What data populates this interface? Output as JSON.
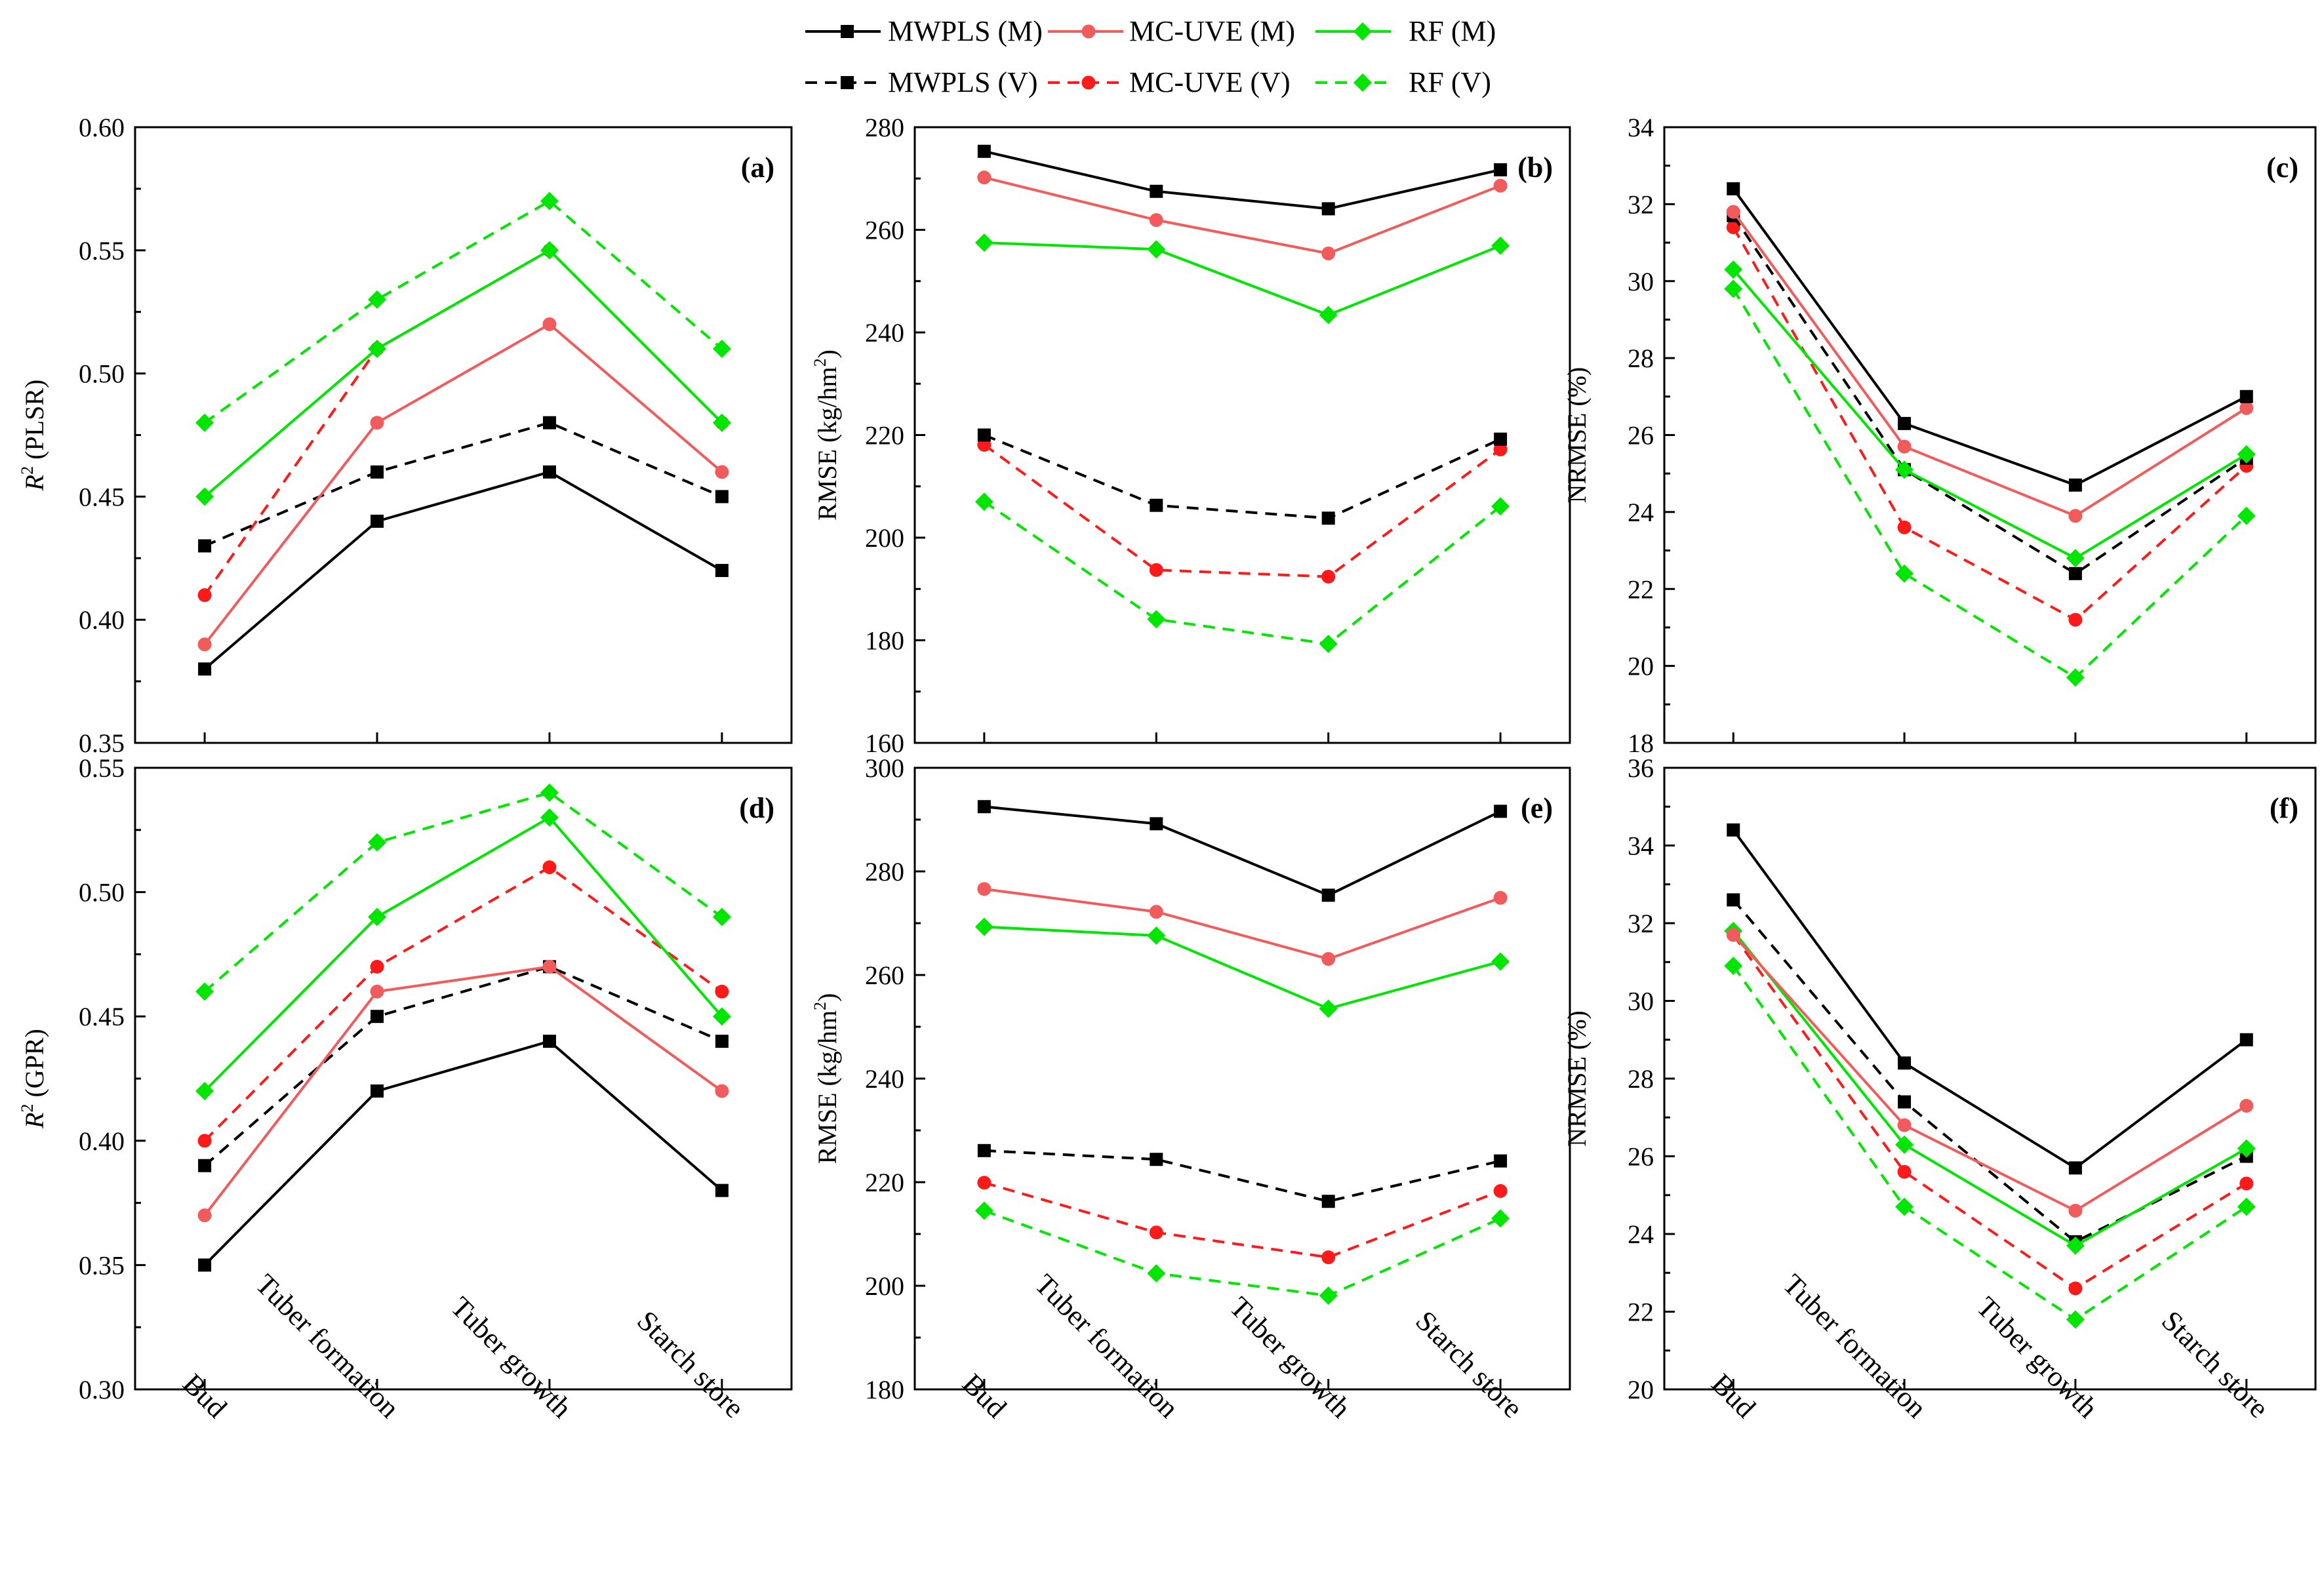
{
  "colors": {
    "mwpls": "#000000",
    "mcuve_m": "#f25b5b",
    "mcuve_v": "#ff1a1a",
    "rf": "#00e600"
  },
  "legend": [
    {
      "label": "MWPLS (M)",
      "color": "#000000",
      "marker": "square",
      "dashed": false
    },
    {
      "label": "MC-UVE (M)",
      "color": "#f25b5b",
      "marker": "circle",
      "dashed": false
    },
    {
      "label": "RF (M)",
      "color": "#00e600",
      "marker": "diamond",
      "dashed": false
    },
    {
      "label": "MWPLS (V)",
      "color": "#000000",
      "marker": "square",
      "dashed": true
    },
    {
      "label": "MC-UVE (V)",
      "color": "#ff1a1a",
      "marker": "circle",
      "dashed": true
    },
    {
      "label": "RF (V)",
      "color": "#00e600",
      "marker": "diamond",
      "dashed": true
    }
  ],
  "chart_data": [
    {
      "type": "line",
      "panel": "(a)",
      "ylabel_main": "R",
      "ylabel_sup": "2",
      "ylabel_rest": " (PLSR)",
      "categories": [
        "Bud",
        "Tuber formation",
        "Tuber growth",
        "Starch store"
      ],
      "ylim": [
        0.35,
        0.6
      ],
      "yticks": [
        0.35,
        0.4,
        0.45,
        0.5,
        0.55,
        0.6
      ],
      "yfmt": "0.00",
      "series": [
        {
          "name": "MWPLS (M)",
          "values": [
            0.38,
            0.44,
            0.46,
            0.42
          ]
        },
        {
          "name": "MC-UVE (M)",
          "values": [
            0.39,
            0.48,
            0.52,
            0.46
          ]
        },
        {
          "name": "RF (M)",
          "values": [
            0.45,
            0.51,
            0.55,
            0.48
          ]
        },
        {
          "name": "MWPLS (V)",
          "values": [
            0.43,
            0.46,
            0.48,
            0.45
          ]
        },
        {
          "name": "MC-UVE (V)",
          "values": [
            0.41,
            0.51,
            0.55,
            0.48
          ]
        },
        {
          "name": "RF (V)",
          "values": [
            0.48,
            0.53,
            0.57,
            0.51
          ]
        }
      ]
    },
    {
      "type": "line",
      "panel": "(b)",
      "ylabel_main": "RMSE (kg/hm",
      "ylabel_sup": "2",
      "ylabel_rest": ")",
      "categories": [
        "Bud",
        "Tuber formation",
        "Tuber growth",
        "Starch store"
      ],
      "ylim": [
        160,
        280
      ],
      "yticks": [
        160,
        180,
        200,
        220,
        240,
        260,
        280
      ],
      "yfmt": "0",
      "series": [
        {
          "name": "MWPLS (M)",
          "values": [
            275.3,
            267.5,
            264.1,
            271.7
          ]
        },
        {
          "name": "MC-UVE (M)",
          "values": [
            270.2,
            261.9,
            255.4,
            268.6
          ]
        },
        {
          "name": "RF (M)",
          "values": [
            257.5,
            256.2,
            243.4,
            256.9
          ]
        },
        {
          "name": "MWPLS (V)",
          "values": [
            220.0,
            206.3,
            203.8,
            219.2
          ]
        },
        {
          "name": "MC-UVE (V)",
          "values": [
            218.1,
            193.7,
            192.4,
            217.2
          ]
        },
        {
          "name": "RF (V)",
          "values": [
            207.0,
            184.1,
            179.3,
            206.1
          ]
        }
      ]
    },
    {
      "type": "line",
      "panel": "(c)",
      "ylabel_main": "NRMSE (%)",
      "ylabel_sup": "",
      "ylabel_rest": "",
      "categories": [
        "Bud",
        "Tuber formation",
        "Tuber growth",
        "Starch store"
      ],
      "ylim": [
        18,
        34
      ],
      "yticks": [
        18,
        20,
        22,
        24,
        26,
        28,
        30,
        32,
        34
      ],
      "yfmt": "0",
      "series": [
        {
          "name": "MWPLS (M)",
          "values": [
            32.4,
            26.3,
            24.7,
            27.0
          ]
        },
        {
          "name": "MC-UVE (M)",
          "values": [
            31.8,
            25.7,
            23.9,
            26.7
          ]
        },
        {
          "name": "RF (M)",
          "values": [
            30.3,
            25.1,
            22.8,
            25.5
          ]
        },
        {
          "name": "MWPLS (V)",
          "values": [
            31.7,
            25.1,
            22.4,
            25.4
          ]
        },
        {
          "name": "MC-UVE (V)",
          "values": [
            31.4,
            23.6,
            21.2,
            25.2
          ]
        },
        {
          "name": "RF (V)",
          "values": [
            29.8,
            22.4,
            19.7,
            23.9
          ]
        }
      ]
    },
    {
      "type": "line",
      "panel": "(d)",
      "ylabel_main": "R",
      "ylabel_sup": "2",
      "ylabel_rest": " (GPR)",
      "categories": [
        "Bud",
        "Tuber formation",
        "Tuber growth",
        "Starch store"
      ],
      "ylim": [
        0.3,
        0.55
      ],
      "yticks": [
        0.3,
        0.35,
        0.4,
        0.45,
        0.5,
        0.55
      ],
      "yfmt": "0.00",
      "series": [
        {
          "name": "MWPLS (M)",
          "values": [
            0.35,
            0.42,
            0.44,
            0.38
          ]
        },
        {
          "name": "MC-UVE (M)",
          "values": [
            0.37,
            0.46,
            0.47,
            0.42
          ]
        },
        {
          "name": "RF (M)",
          "values": [
            0.42,
            0.49,
            0.53,
            0.45
          ]
        },
        {
          "name": "MWPLS (V)",
          "values": [
            0.39,
            0.45,
            0.47,
            0.44
          ]
        },
        {
          "name": "MC-UVE (V)",
          "values": [
            0.4,
            0.47,
            0.51,
            0.46
          ]
        },
        {
          "name": "RF (V)",
          "values": [
            0.46,
            0.52,
            0.54,
            0.49
          ]
        }
      ]
    },
    {
      "type": "line",
      "panel": "(e)",
      "ylabel_main": "RMSE (kg/hm",
      "ylabel_sup": "2",
      "ylabel_rest": ")",
      "categories": [
        "Bud",
        "Tuber formation",
        "Tuber growth",
        "Starch store"
      ],
      "ylim": [
        180,
        300
      ],
      "yticks": [
        180,
        200,
        220,
        240,
        260,
        280,
        300
      ],
      "yfmt": "0",
      "series": [
        {
          "name": "MWPLS (M)",
          "values": [
            292.5,
            289.2,
            275.4,
            291.6
          ]
        },
        {
          "name": "MC-UVE (M)",
          "values": [
            276.6,
            272.2,
            263.1,
            274.9
          ]
        },
        {
          "name": "RF (M)",
          "values": [
            269.3,
            267.6,
            253.5,
            262.6
          ]
        },
        {
          "name": "MWPLS (V)",
          "values": [
            226.1,
            224.4,
            216.3,
            224.1
          ]
        },
        {
          "name": "MC-UVE (V)",
          "values": [
            219.9,
            210.3,
            205.5,
            218.3
          ]
        },
        {
          "name": "RF (V)",
          "values": [
            214.5,
            202.4,
            198.1,
            213.0
          ]
        }
      ]
    },
    {
      "type": "line",
      "panel": "(f)",
      "ylabel_main": "NRMSE (%)",
      "ylabel_sup": "",
      "ylabel_rest": "",
      "categories": [
        "Bud",
        "Tuber formation",
        "Tuber growth",
        "Starch store"
      ],
      "ylim": [
        20,
        36
      ],
      "yticks": [
        20,
        22,
        24,
        26,
        28,
        30,
        32,
        34,
        36
      ],
      "yfmt": "0",
      "series": [
        {
          "name": "MWPLS (M)",
          "values": [
            34.4,
            28.4,
            25.7,
            29.0
          ]
        },
        {
          "name": "MC-UVE (M)",
          "values": [
            31.7,
            26.8,
            24.6,
            27.3
          ]
        },
        {
          "name": "RF (M)",
          "values": [
            31.8,
            26.3,
            23.7,
            26.2
          ]
        },
        {
          "name": "MWPLS (V)",
          "values": [
            32.6,
            27.4,
            23.8,
            26.0
          ]
        },
        {
          "name": "MC-UVE (V)",
          "values": [
            31.7,
            25.6,
            22.6,
            25.3
          ]
        },
        {
          "name": "RF (V)",
          "values": [
            30.9,
            24.7,
            21.8,
            24.7
          ]
        }
      ]
    }
  ]
}
